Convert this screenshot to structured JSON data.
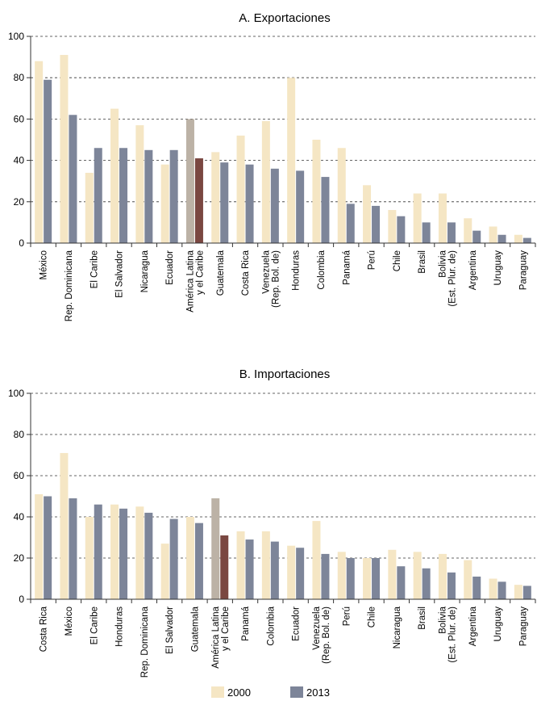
{
  "colors": {
    "y2000": "#f5e6c4",
    "y2013": "#7d8599",
    "y2000_highlight": "#bcb2a6",
    "y2013_highlight": "#7a4741",
    "grid": "#333333",
    "axis": "#333333"
  },
  "legend": {
    "label_2000": "2000",
    "label_2013": "2013"
  },
  "chart_data": [
    {
      "type": "bar",
      "title": "A. Exportaciones",
      "ylim": [
        0,
        100
      ],
      "yticks": [
        "0",
        "20",
        "40",
        "60",
        "80",
        "100"
      ],
      "grid": "dashed horizontal",
      "highlight": "América Latina y el Caribe",
      "categories": [
        "México",
        "Rep. Dominicana",
        "El Caribe",
        "El Salvador",
        "Nicaragua",
        "Ecuador",
        "América Latina y el Caribe",
        "Guatemala",
        "Costa Rica",
        "Venezuela (Rep. Bol. de)",
        "Honduras",
        "Colombia",
        "Panamá",
        "Perú",
        "Chile",
        "Brasil",
        "Bolivia (Est. Plur. de)",
        "Argentina",
        "Uruguay",
        "Paraguay"
      ],
      "category_lines": [
        [
          "México"
        ],
        [
          "Rep. Dominicana"
        ],
        [
          "El Caribe"
        ],
        [
          "El Salvador"
        ],
        [
          "Nicaragua"
        ],
        [
          "Ecuador"
        ],
        [
          "América Latina",
          "y el Caribe"
        ],
        [
          "Guatemala"
        ],
        [
          "Costa Rica"
        ],
        [
          "Venezuela",
          "(Rep. Bol. de)"
        ],
        [
          "Honduras"
        ],
        [
          "Colombia"
        ],
        [
          "Panamá"
        ],
        [
          "Perú"
        ],
        [
          "Chile"
        ],
        [
          "Brasil"
        ],
        [
          "Bolivia",
          "(Est. Plur. de)"
        ],
        [
          "Argentina"
        ],
        [
          "Uruguay"
        ],
        [
          "Paraguay"
        ]
      ],
      "series": [
        {
          "name": "2000",
          "values": [
            88,
            91,
            34,
            65,
            57,
            38,
            60,
            44,
            52,
            59,
            80,
            50,
            46,
            28,
            16,
            24,
            24,
            12,
            8,
            4
          ]
        },
        {
          "name": "2013",
          "values": [
            79,
            62,
            46,
            46,
            45,
            45,
            41,
            39,
            38,
            36,
            35,
            32,
            19,
            18,
            13,
            10,
            10,
            6,
            4,
            2.5
          ]
        }
      ]
    },
    {
      "type": "bar",
      "title": "B. Importaciones",
      "ylim": [
        0,
        100
      ],
      "yticks": [
        "0",
        "20",
        "40",
        "60",
        "80",
        "100"
      ],
      "grid": "dashed horizontal",
      "highlight": "América Latina y el Caribe",
      "categories": [
        "Costa Rica",
        "México",
        "El Caribe",
        "Honduras",
        "Rep. Dominicana",
        "El Salvador",
        "Guatemala",
        "América Latina y el Caribe",
        "Panamá",
        "Colombia",
        "Ecuador",
        "Venezuela (Rep. Bol. de)",
        "Perú",
        "Chile",
        "Nicaragua",
        "Brasil",
        "Bolivia (Est. Plur. de)",
        "Argentina",
        "Uruguay",
        "Paraguay"
      ],
      "category_lines": [
        [
          "Costa Rica"
        ],
        [
          "México"
        ],
        [
          "El Caribe"
        ],
        [
          "Honduras"
        ],
        [
          "Rep. Dominicana"
        ],
        [
          "El Salvador"
        ],
        [
          "Guatemala"
        ],
        [
          "América Latina",
          "y el Caribe"
        ],
        [
          "Panamá"
        ],
        [
          "Colombia"
        ],
        [
          "Ecuador"
        ],
        [
          "Venezuela",
          "(Rep. Bol. de)"
        ],
        [
          "Perú"
        ],
        [
          "Chile"
        ],
        [
          "Nicaragua"
        ],
        [
          "Brasil"
        ],
        [
          "Bolivia",
          "(Est. Plur. de)"
        ],
        [
          "Argentina"
        ],
        [
          "Uruguay"
        ],
        [
          "Paraguay"
        ]
      ],
      "series": [
        {
          "name": "2000",
          "values": [
            51,
            71,
            40,
            46,
            45,
            27,
            40,
            49,
            33,
            33,
            26,
            38,
            23,
            20,
            24,
            23,
            22,
            19,
            10,
            7
          ]
        },
        {
          "name": "2013",
          "values": [
            50,
            49,
            46,
            44,
            42,
            39,
            37,
            31,
            29,
            28,
            25,
            22,
            20,
            20,
            16,
            15,
            13,
            11,
            8.5,
            6.5
          ]
        }
      ]
    }
  ]
}
